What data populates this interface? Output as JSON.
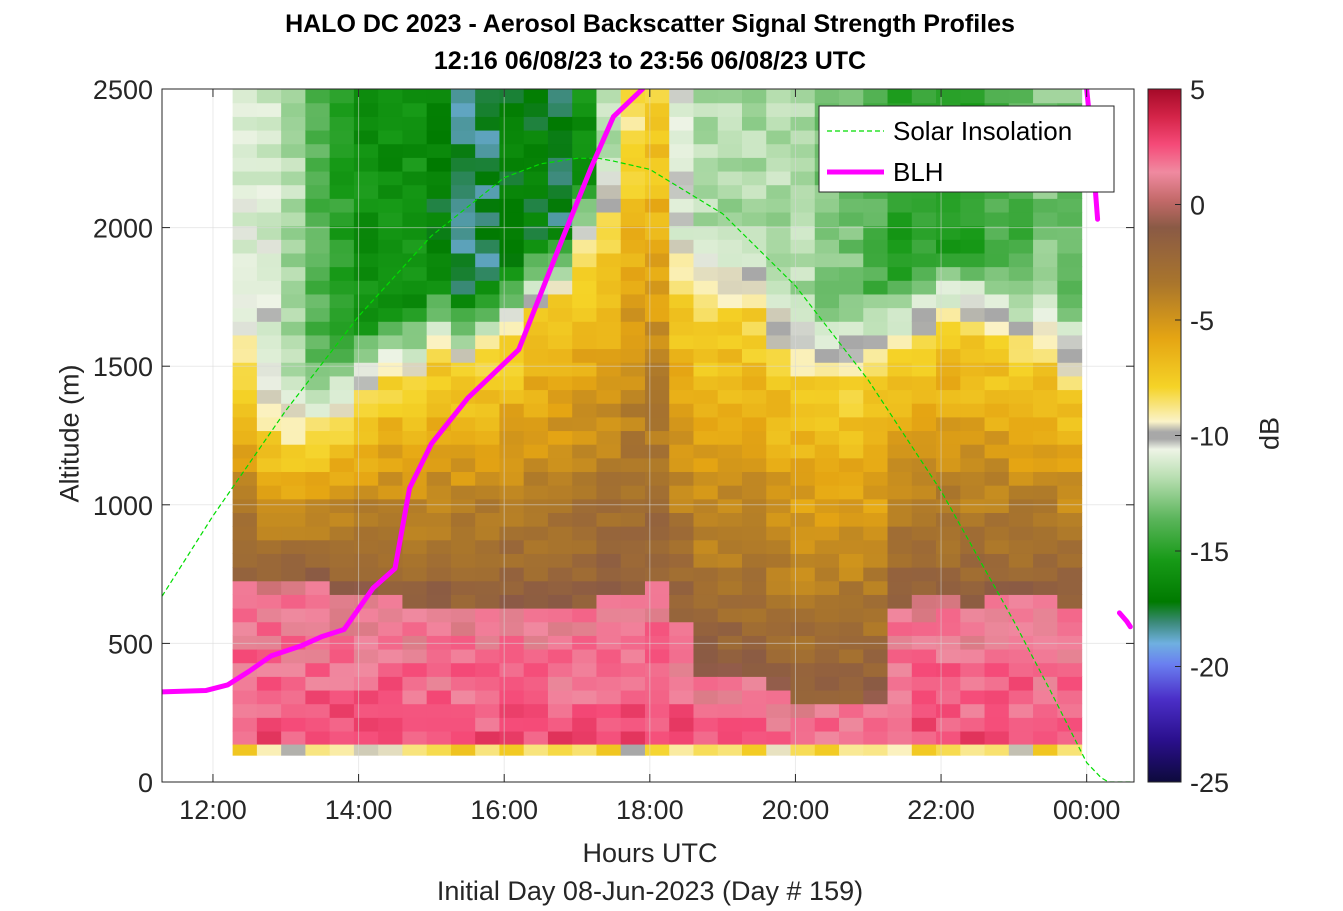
{
  "chart_data": {
    "type": "heatmap",
    "title": "HALO DC 2023 - Aerosol Backscatter Signal Strength Profiles",
    "subtitle": "12:16 06/08/23 to 23:56 06/08/23  UTC",
    "xlabel": "Hours UTC",
    "footer": "Initial Day 08-Jun-2023 (Day # 159)",
    "ylabel": "Altitude (m)",
    "colorbar_label": "dB",
    "xlim": [
      11.3,
      24.65
    ],
    "ylim": [
      0,
      2500
    ],
    "x_ticks": [
      12,
      14,
      16,
      18,
      20,
      22,
      24
    ],
    "x_tick_labels": [
      "12:00",
      "14:00",
      "16:00",
      "18:00",
      "20:00",
      "22:00",
      "00:00"
    ],
    "y_ticks": [
      0,
      500,
      1000,
      1500,
      2000,
      2500
    ],
    "y_tick_labels": [
      "0",
      "500",
      "1000",
      "1500",
      "2000",
      "2500"
    ],
    "colorbar_range": [
      -25,
      5
    ],
    "colorbar_ticks": [
      5,
      0,
      -5,
      -10,
      -15,
      -20,
      -25
    ],
    "colorbar_tick_labels": [
      "5",
      "0",
      "-5",
      "-10",
      "-15",
      "-20",
      "-25"
    ],
    "grid": true,
    "legend_location": "top-right",
    "heatmap_x_start": 12.27,
    "heatmap_x_end": 23.93,
    "heatmap_y_start": 135,
    "heatmap_y_end": 2500,
    "heatmap_columns": 35,
    "heatmap_rows": 48,
    "layer_profiles": {
      "columns_hour": [
        12.3,
        12.6,
        13.0,
        13.3,
        13.6,
        13.9,
        14.3,
        14.6,
        14.9,
        15.3,
        15.6,
        15.9,
        16.3,
        16.6,
        16.9,
        17.3,
        17.6,
        17.9,
        18.3,
        18.6,
        18.9,
        19.3,
        19.6,
        19.9,
        20.3,
        20.6,
        20.9,
        21.3,
        21.6,
        21.9,
        22.3,
        22.6,
        22.9,
        23.3,
        23.6
      ],
      "pink_layer_top_m": [
        720,
        720,
        720,
        720,
        700,
        680,
        660,
        650,
        640,
        640,
        650,
        650,
        640,
        650,
        650,
        660,
        700,
        720,
        600,
        400,
        400,
        400,
        350,
        300,
        300,
        300,
        300,
        650,
        660,
        660,
        650,
        660,
        660,
        660,
        640
      ],
      "aerosol_top_m": [
        1450,
        1250,
        1200,
        1250,
        1300,
        1400,
        1450,
        1450,
        1550,
        1500,
        1550,
        1600,
        1700,
        1750,
        1900,
        2000,
        2300,
        2450,
        1750,
        1700,
        1700,
        1700,
        1550,
        1450,
        1450,
        1450,
        1500,
        1550,
        1600,
        1650,
        1650,
        1600,
        1550,
        1550,
        1450
      ],
      "clean_air_dB": [
        -11,
        -11,
        -12,
        -14,
        -15,
        -16,
        -16,
        -16,
        -17,
        -18,
        -18,
        -17,
        -17,
        -18,
        -16,
        -12,
        -9,
        -9,
        -11,
        -12,
        -12,
        -12,
        -12,
        -12,
        -13,
        -13,
        -14,
        -15,
        -15,
        -15,
        -15,
        -14,
        -14,
        -13,
        -13
      ]
    },
    "series": [
      {
        "name": "Solar Insolation",
        "style": "dashed",
        "color": "#00dd00",
        "x": [
          11.3,
          12.0,
          13.0,
          14.0,
          15.0,
          16.0,
          16.5,
          17.0,
          17.3,
          17.5,
          18.0,
          19.0,
          20.0,
          21.0,
          22.0,
          23.0,
          23.5,
          24.0,
          24.2,
          24.3,
          24.6
        ],
        "y": [
          670,
          960,
          1340,
          1680,
          1970,
          2180,
          2230,
          2250,
          2250,
          2240,
          2210,
          2050,
          1790,
          1450,
          1050,
          580,
          330,
          70,
          15,
          0,
          0
        ]
      },
      {
        "name": "BLH",
        "style": "solid",
        "color": "#ff00ff",
        "x": [
          11.3,
          11.9,
          12.2,
          12.5,
          12.8,
          13.2,
          13.5,
          13.8,
          14.2,
          14.5,
          14.7,
          15.0,
          15.5,
          15.8,
          16.2,
          16.5,
          16.8,
          17.2,
          17.5,
          17.9
        ],
        "y": [
          325,
          330,
          350,
          400,
          455,
          490,
          525,
          550,
          700,
          770,
          1060,
          1220,
          1385,
          1460,
          1560,
          1760,
          1960,
          2220,
          2400,
          2500
        ]
      },
      {
        "name": "BLH (second segment)",
        "style": "solid",
        "color": "#ff00ff",
        "x": [
          24.0,
          24.05,
          24.1,
          24.15
        ],
        "y": [
          2500,
          2370,
          2200,
          2030
        ]
      },
      {
        "name": "BLH (third segment)",
        "style": "solid",
        "color": "#ff00ff",
        "x": [
          24.45,
          24.55,
          24.6
        ],
        "y": [
          610,
          580,
          560
        ]
      }
    ],
    "legend": [
      "Solar Insolation",
      "BLH"
    ]
  }
}
